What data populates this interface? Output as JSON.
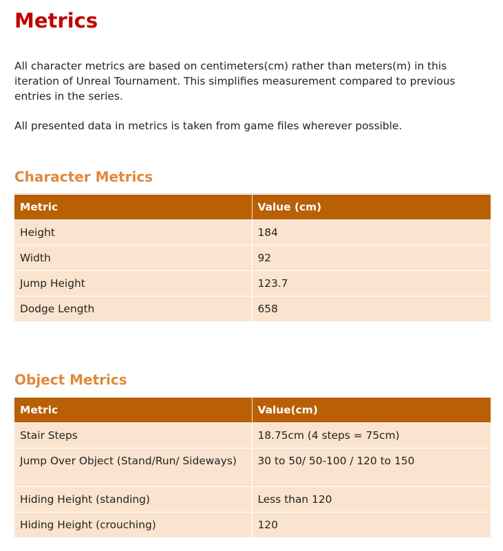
{
  "page": {
    "title": "Metrics",
    "intro_1": "All character metrics are based on centimeters(cm) rather than meters(m) in this iteration of Unreal Tournament. This simplifies measurement compared to previous entries in the series.",
    "intro_2": "All presented data in metrics is taken from game files wherever possible."
  },
  "character_metrics": {
    "heading": "Character Metrics",
    "columns": [
      "Metric",
      "Value (cm)"
    ],
    "rows": [
      {
        "metric": "Height",
        "value": "184"
      },
      {
        "metric": "Width",
        "value": "92"
      },
      {
        "metric": "Jump Height",
        "value": "123.7"
      },
      {
        "metric": "Dodge Length",
        "value": "658"
      }
    ]
  },
  "object_metrics": {
    "heading": "Object Metrics",
    "columns": [
      "Metric",
      "Value(cm)"
    ],
    "rows": [
      {
        "metric": "Stair Steps",
        "value": "18.75cm (4 steps = 75cm)"
      },
      {
        "metric": "Jump Over Object (Stand/Run/ Sideways)",
        "value": "30 to 50/ 50-100 / 120 to 150"
      },
      {
        "metric": "Hiding Height (standing)",
        "value": "Less than 120"
      },
      {
        "metric": "Hiding Height (crouching)",
        "value": "120"
      }
    ]
  },
  "colors": {
    "title": "#c00000",
    "section_heading": "#e0893a",
    "table_header_bg": "#b95f04",
    "table_row_bg": "#fbe4cf"
  }
}
